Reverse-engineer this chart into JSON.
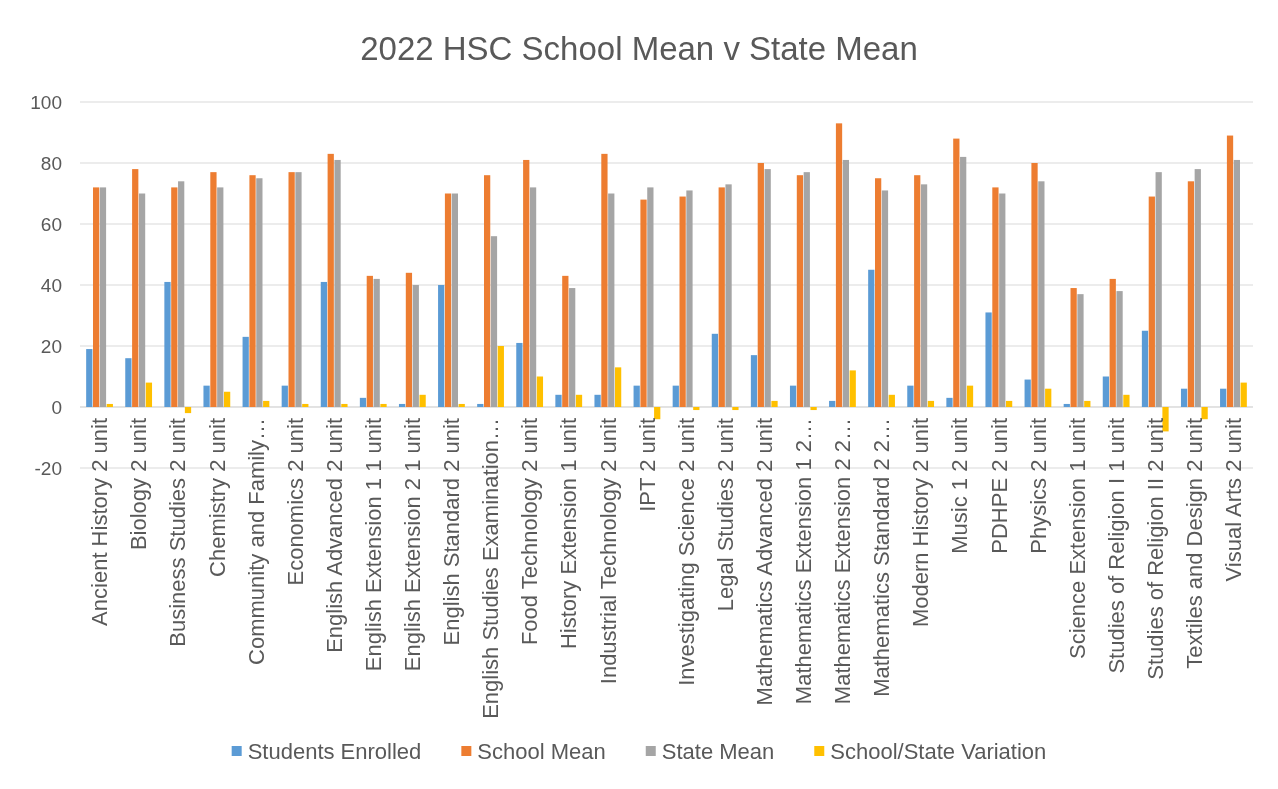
{
  "chart_data": {
    "type": "bar",
    "title": "2022 HSC School Mean v State Mean",
    "categories": [
      "Ancient History 2 unit",
      "Biology 2 unit",
      "Business Studies 2 unit",
      "Chemistry 2 unit",
      "Community and Family…",
      "Economics 2 unit",
      "English Advanced 2 unit",
      "English Extension 1 1 unit",
      "English Extension 2 1 unit",
      "English Standard 2 unit",
      "English Studies Examination…",
      "Food Technology 2 unit",
      "History Extension 1 unit",
      "Industrial Technology 2 unit",
      "IPT 2 unit",
      "Investigating Science 2 unit",
      "Legal Studies 2 unit",
      "Mathematics Advanced 2 unit",
      "Mathematics Extension 1 2…",
      "Mathematics Extension 2 2…",
      "Mathematics Standard 2 2…",
      "Modern History 2 unit",
      "Music 1 2 unit",
      "PDHPE 2 unit",
      "Physics 2 unit",
      "Science Extension 1 unit",
      "Studies of Religion I 1 unit",
      "Studies of Religion II 2 unit",
      "Textiles and Design 2 unit",
      "Visual Arts 2 unit"
    ],
    "series": [
      {
        "name": "Students Enrolled",
        "color": "#5b9bd5",
        "values": [
          19,
          16,
          41,
          7,
          23,
          7,
          41,
          3,
          1,
          40,
          1,
          21,
          4,
          4,
          7,
          7,
          24,
          17,
          7,
          2,
          45,
          7,
          3,
          31,
          9,
          1,
          10,
          25,
          6,
          6
        ]
      },
      {
        "name": "School Mean",
        "color": "#ed7d31",
        "values": [
          72,
          78,
          72,
          77,
          76,
          77,
          83,
          43,
          44,
          70,
          76,
          81,
          43,
          83,
          68,
          69,
          72,
          80,
          76,
          93,
          75,
          76,
          88,
          72,
          80,
          39,
          42,
          69,
          74,
          89
        ]
      },
      {
        "name": "State Mean",
        "color": "#a5a5a5",
        "values": [
          72,
          70,
          74,
          72,
          75,
          77,
          81,
          42,
          40,
          70,
          56,
          72,
          39,
          70,
          72,
          71,
          73,
          78,
          77,
          81,
          71,
          73,
          82,
          70,
          74,
          37,
          38,
          77,
          78,
          81
        ]
      },
      {
        "name": "School/State Variation",
        "color": "#ffc000",
        "values": [
          1,
          8,
          -2,
          5,
          2,
          1,
          1,
          1,
          4,
          1,
          20,
          10,
          4,
          13,
          -4,
          -1,
          -1,
          2,
          -1,
          12,
          4,
          2,
          7,
          2,
          6,
          2,
          4,
          -8,
          -4,
          8
        ]
      }
    ],
    "ylim": [
      -20,
      100
    ],
    "yticks": [
      -20,
      0,
      20,
      40,
      60,
      80,
      100
    ],
    "grid": "y",
    "legend": "bottom"
  }
}
